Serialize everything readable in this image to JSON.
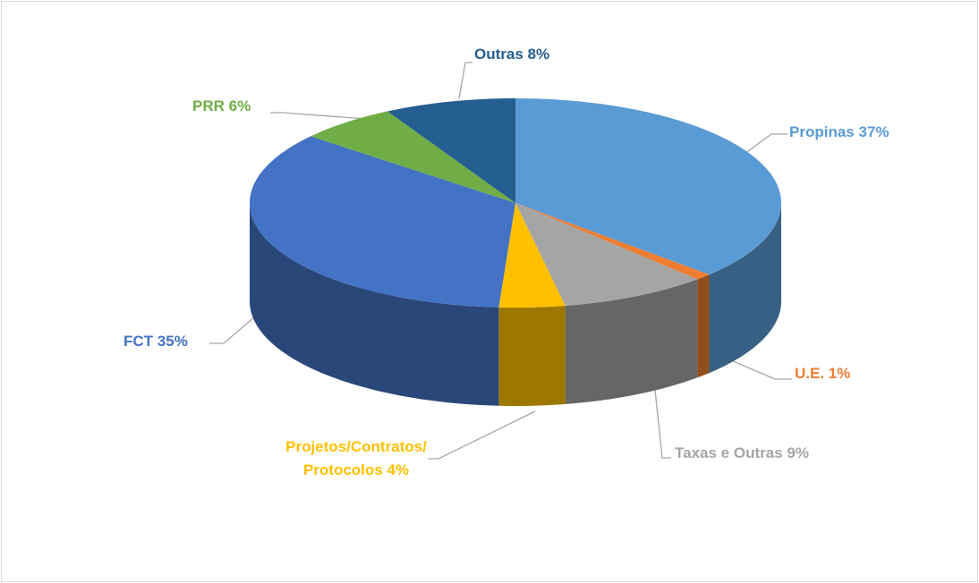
{
  "chart_data": {
    "type": "pie3d",
    "categories": [
      "Propinas",
      "U.E.",
      "Taxas e Outras",
      "Projetos/Contratos/Protocolos",
      "FCT",
      "PRR",
      "Outras"
    ],
    "values": [
      37,
      1,
      9,
      4,
      35,
      6,
      8
    ],
    "value_labels": [
      "37%",
      "1%",
      "9%",
      "4%",
      "35%",
      "6%",
      "8%"
    ],
    "colors": [
      "#5b9bd5",
      "#ed7d31",
      "#a5a5a5",
      "#ffc000",
      "#4472c4",
      "#70ad47",
      "#255e91"
    ]
  }
}
